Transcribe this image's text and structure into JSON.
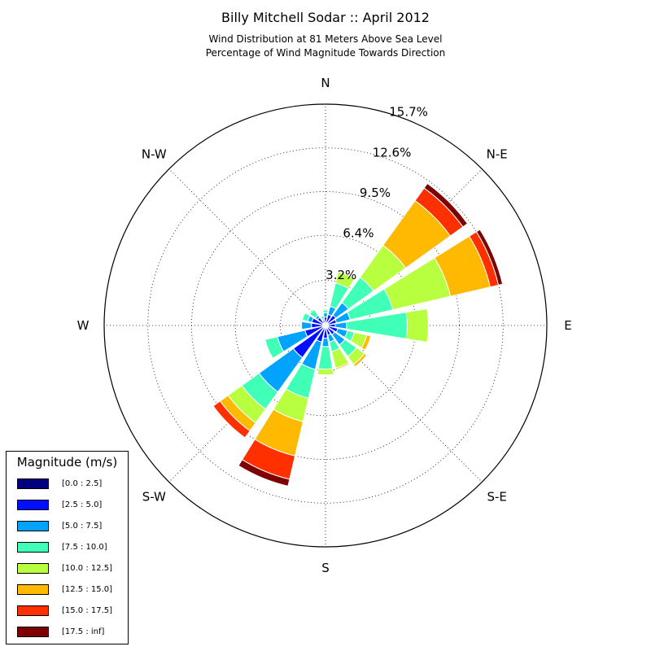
{
  "title": "Billy Mitchell Sodar :: April 2012",
  "subtitle_line1": "Wind Distribution at 81 Meters Above Sea Level",
  "subtitle_line2": "Percentage of Wind Magnitude Towards Direction",
  "legend": {
    "title": "Magnitude (m/s)",
    "items": [
      {
        "label": "[0.0 : 2.5]",
        "color": "#00007f"
      },
      {
        "label": "[2.5 : 5.0]",
        "color": "#0010ff"
      },
      {
        "label": "[5.0 : 7.5]",
        "color": "#00a4ff"
      },
      {
        "label": "[7.5 : 10.0]",
        "color": "#40ffb7"
      },
      {
        "label": "[10.0 : 12.5]",
        "color": "#b8ff3f"
      },
      {
        "label": "[12.5 : 15.0]",
        "color": "#ffb900"
      },
      {
        "label": "[15.0 : 17.5]",
        "color": "#ff3000"
      },
      {
        "label": "[17.5 : inf]",
        "color": "#7f0000"
      }
    ]
  },
  "chart_data": {
    "type": "windrose",
    "title": "Billy Mitchell Sodar :: April 2012",
    "directions": [
      "N",
      "NNE",
      "NE",
      "ENE",
      "E",
      "ESE",
      "SE",
      "SSE",
      "S",
      "SSW",
      "SW",
      "WSW",
      "W",
      "WNW",
      "NW",
      "NNW"
    ],
    "direction_labels": [
      "N",
      "N-E",
      "E",
      "S-E",
      "S",
      "S-W",
      "W",
      "N-W"
    ],
    "radial_ticks": [
      "3.2%",
      "6.4%",
      "9.5%",
      "12.6%",
      "15.7%"
    ],
    "radial_tick_values": [
      3.2,
      6.4,
      9.5,
      12.6,
      15.7
    ],
    "rmax": 15.7,
    "series": [
      {
        "name": "[0.0 : 2.5]",
        "values": [
          0.2,
          0.2,
          0.2,
          0.2,
          0.2,
          0.2,
          0.2,
          0.2,
          0.2,
          0.2,
          0.2,
          0.2,
          0.2,
          0.2,
          0.2,
          0.2
        ]
      },
      {
        "name": "[2.5 : 5.0]",
        "values": [
          0.4,
          0.6,
          0.7,
          0.6,
          0.5,
          0.7,
          0.6,
          0.5,
          0.7,
          1.0,
          2.6,
          1.3,
          0.8,
          0.8,
          0.5,
          0.2
        ]
      },
      {
        "name": "[5.0 : 7.5]",
        "values": [
          0.3,
          0.6,
          1.1,
          1.0,
          0.8,
          0.7,
          0.9,
          0.5,
          0.6,
          2.0,
          3.0,
          2.0,
          0.7,
          0.3,
          0.2,
          0.1
        ]
      },
      {
        "name": "[7.5 : 10.0]",
        "values": [
          0.2,
          1.7,
          2.2,
          3.1,
          4.3,
          0.5,
          1.0,
          0.7,
          1.6,
          2.1,
          1.5,
          0.9,
          0.0,
          0.4,
          0.5,
          0.2
        ]
      },
      {
        "name": "[10.0 : 12.5]",
        "values": [
          0.1,
          0.8,
          2.8,
          4.2,
          1.5,
          0.9,
          0.7,
          1.2,
          0.4,
          1.7,
          1.2,
          0.0,
          0.0,
          0.0,
          0.0,
          0.0
        ]
      },
      {
        "name": "[12.5 : 15.0]",
        "values": [
          0.0,
          0.0,
          3.9,
          2.9,
          0.0,
          0.3,
          0.2,
          0.1,
          0.0,
          2.5,
          0.7,
          0.0,
          0.0,
          0.0,
          0.0,
          0.0
        ]
      },
      {
        "name": "[15.0 : 17.5]",
        "values": [
          0.0,
          0.0,
          1.1,
          0.6,
          0.0,
          0.0,
          0.0,
          0.0,
          0.0,
          1.7,
          0.6,
          0.0,
          0.0,
          0.0,
          0.0,
          0.0
        ]
      },
      {
        "name": "[17.5 : inf]",
        "values": [
          0.0,
          0.0,
          0.4,
          0.3,
          0.0,
          0.0,
          0.0,
          0.0,
          0.0,
          0.5,
          0.0,
          0.0,
          0.0,
          0.0,
          0.0,
          0.0
        ]
      }
    ],
    "grid": true,
    "legend_position": "bottom-left"
  }
}
